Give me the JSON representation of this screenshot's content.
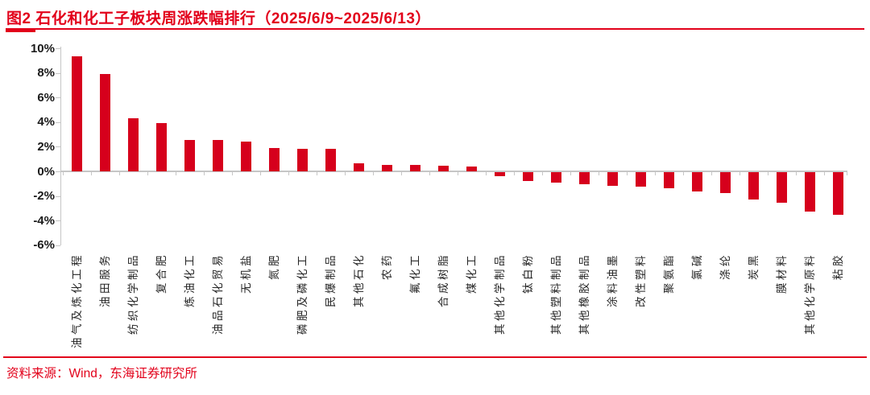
{
  "header": {
    "title": "图2  石化和化工子板块周涨跌幅排行（2025/6/9~2025/6/13）"
  },
  "footer": {
    "source": "资料来源：Wind，东海证券研究所"
  },
  "colors": {
    "accent_red": "#E2001A",
    "bar_red": "#D6001C",
    "axis_gray": "#C6C6C6",
    "label_dark": "#262626"
  },
  "chart_data": {
    "type": "bar",
    "title": "石化和化工子板块周涨跌幅排行（2025/6/9~2025/6/13）",
    "xlabel": "",
    "ylabel": "",
    "categories": [
      "油气及炼化工程",
      "油田服务",
      "纺织化学制品",
      "复合肥",
      "炼油化工",
      "油品石化贸易",
      "无机盐",
      "氮肥",
      "磷肥及磷化工",
      "民爆制品",
      "其他石化",
      "农药",
      "氟化工",
      "合成树脂",
      "煤化工",
      "其他化学制品",
      "钛白粉",
      "其他塑料制品",
      "其他橡胶制品",
      "涂料油墨",
      "改性塑料",
      "聚氨酯",
      "氯碱",
      "涤纶",
      "炭黑",
      "膜材料",
      "其他化学原料",
      "粘胶"
    ],
    "values": [
      9.35,
      7.9,
      4.3,
      3.95,
      2.55,
      2.55,
      2.4,
      1.9,
      1.85,
      1.8,
      0.65,
      0.55,
      0.5,
      0.45,
      0.4,
      -0.3,
      -0.75,
      -0.85,
      -1.0,
      -1.1,
      -1.2,
      -1.3,
      -1.6,
      -1.7,
      -2.25,
      -2.5,
      -3.2,
      -3.45
    ],
    "unit": "%",
    "ylim": [
      -6,
      10
    ],
    "yticks": [
      "10%",
      "8%",
      "6%",
      "4%",
      "2%",
      "0%",
      "-2%",
      "-4%",
      "-6%"
    ],
    "grid": false,
    "legend": false,
    "bar_color": "#D6001C",
    "categories_rotated_bottom_to_top": true
  }
}
